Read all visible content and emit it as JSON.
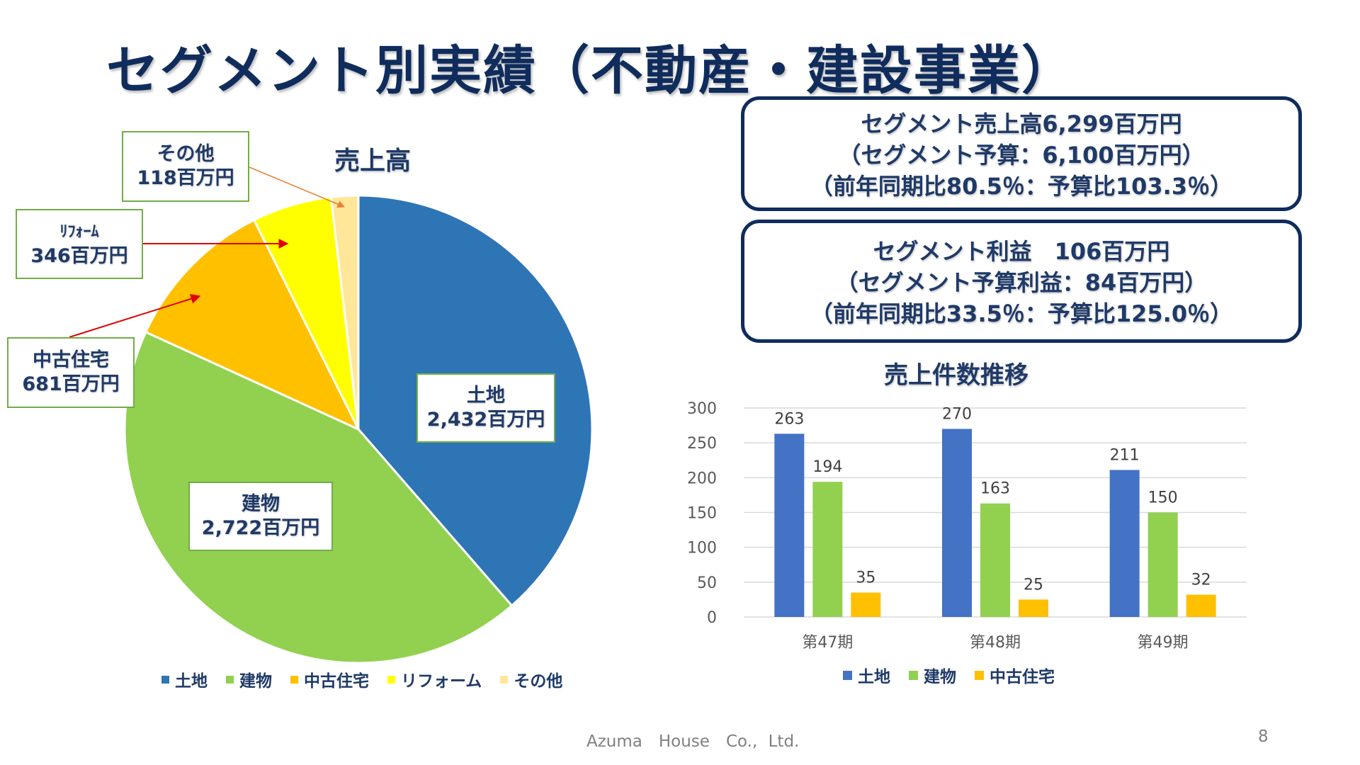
{
  "title": "セグメント別実績（不動産・建設事業）",
  "footer": {
    "company": "Azuma　House　Co., Ltd.",
    "page": "8"
  },
  "summary_sales": {
    "line1": "セグメント売上高6,299百万円",
    "line2": "（セグメント予算：6,100百万円）",
    "line3": "（前年同期比80.5％：予算比103.3％）"
  },
  "summary_profit": {
    "line1": "セグメント利益　106百万円",
    "line2": "（セグメント予算利益：84百万円）",
    "line3": "（前年同期比33.5％：予算比125.0％）"
  },
  "chart_data": [
    {
      "type": "pie",
      "title": "売上高",
      "categories": [
        "土地",
        "建物",
        "中古住宅",
        "リフォーム",
        "その他"
      ],
      "values": [
        2432,
        2722,
        681,
        346,
        118
      ],
      "unit": "百万円",
      "colors": [
        "#2e75b6",
        "#92d050",
        "#ffc000",
        "#ffff00",
        "#ffe699"
      ],
      "labels": [
        {
          "name": "土地",
          "value": "2,432百万円"
        },
        {
          "name": "建物",
          "value": "2,722百万円"
        },
        {
          "name": "中古住宅",
          "value": "681百万円"
        },
        {
          "name": "ﾘﾌｫｰﾑ",
          "value": "346百万円"
        },
        {
          "name": "その他",
          "value": "118百万円"
        }
      ],
      "legend": [
        "土地",
        "建物",
        "中古住宅",
        "リフォーム",
        "その他"
      ],
      "legend_position": "bottom"
    },
    {
      "type": "bar",
      "title": "売上件数推移",
      "categories": [
        "第47期",
        "第48期",
        "第49期"
      ],
      "series": [
        {
          "name": "土地",
          "values": [
            263,
            270,
            211
          ],
          "color": "#4472c4"
        },
        {
          "name": "建物",
          "values": [
            194,
            163,
            150
          ],
          "color": "#92d050"
        },
        {
          "name": "中古住宅",
          "values": [
            35,
            25,
            32
          ],
          "color": "#ffc000"
        }
      ],
      "ylim": [
        0,
        300
      ],
      "yticks": [
        0,
        50,
        100,
        150,
        200,
        250,
        300
      ],
      "grid": true,
      "legend_position": "bottom"
    }
  ]
}
